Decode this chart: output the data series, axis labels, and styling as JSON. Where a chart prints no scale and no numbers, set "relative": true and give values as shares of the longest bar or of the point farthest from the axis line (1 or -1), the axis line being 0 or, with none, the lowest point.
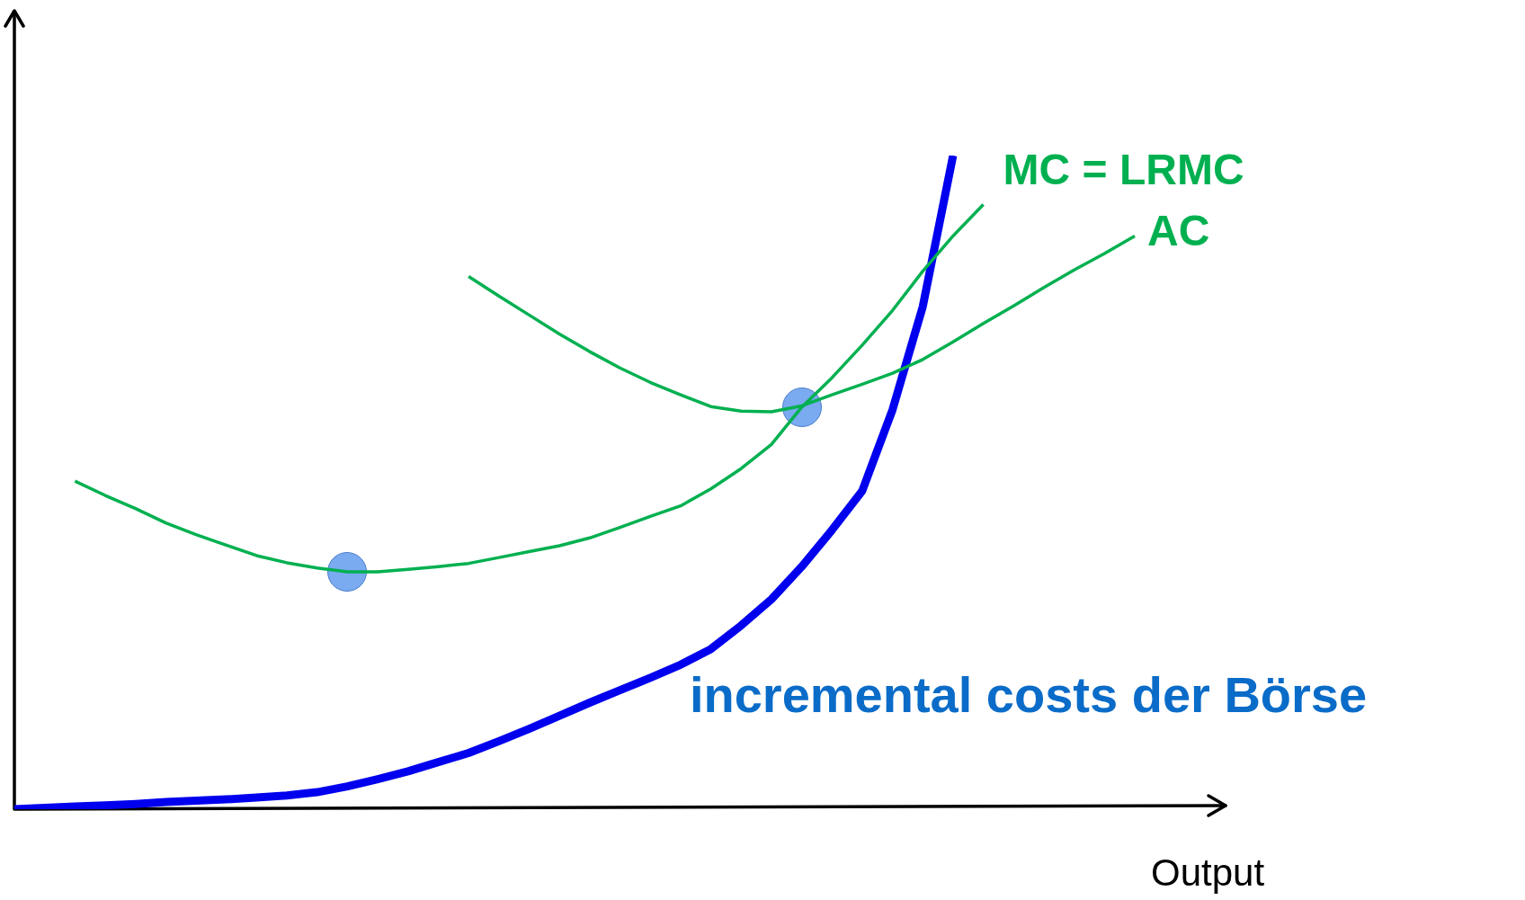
{
  "chart_data": {
    "type": "line",
    "xlabel": "Output",
    "relative": true,
    "legend": false,
    "categories": [
      null,
      null,
      null,
      null,
      null,
      null,
      null,
      null,
      null,
      null,
      null,
      null,
      null,
      null,
      null,
      null,
      null,
      null,
      null,
      null,
      null,
      null,
      null,
      null,
      null,
      null,
      null,
      null,
      null,
      null,
      null,
      null,
      null,
      null,
      null,
      null,
      null,
      null,
      null,
      null,
      null
    ],
    "series": [
      {
        "name": "MC = LRMC",
        "color": "#00b050",
        "values": [
          null,
          null,
          0.502,
          0.48,
          0.46,
          0.438,
          0.42,
          0.404,
          0.388,
          0.377,
          0.369,
          0.363,
          0.363,
          0.367,
          0.371,
          0.376,
          0.385,
          0.394,
          0.403,
          0.415,
          0.431,
          0.448,
          0.464,
          0.49,
          0.521,
          0.558,
          0.615,
          0.66,
          0.71,
          0.763,
          0.823,
          0.877,
          0.925,
          null,
          null,
          null,
          null,
          null,
          null,
          null,
          null
        ]
      },
      {
        "name": "AC",
        "color": "#00b050",
        "values": [
          null,
          null,
          null,
          null,
          null,
          null,
          null,
          null,
          null,
          null,
          null,
          null,
          null,
          null,
          null,
          0.815,
          0.785,
          0.756,
          0.727,
          0.7,
          0.675,
          0.653,
          0.634,
          0.616,
          0.609,
          0.608,
          0.617,
          0.634,
          0.65,
          0.667,
          0.688,
          0.715,
          0.743,
          0.77,
          0.798,
          0.825,
          0.85,
          0.877,
          null,
          null,
          null
        ]
      },
      {
        "name": "incremental costs der Börse",
        "color": "#0000ee",
        "values": [
          0,
          0.002,
          0.004,
          0.006,
          0.008,
          0.011,
          0.013,
          0.015,
          0.018,
          0.021,
          0.026,
          0.035,
          0.046,
          0.058,
          0.072,
          0.086,
          0.104,
          0.123,
          0.143,
          0.163,
          0.182,
          0.201,
          0.221,
          0.245,
          0.281,
          0.321,
          0.371,
          0.427,
          0.487,
          0.611,
          0.769,
          1,
          null,
          null,
          null,
          null,
          null,
          null,
          null,
          null,
          null
        ]
      }
    ]
  }
}
